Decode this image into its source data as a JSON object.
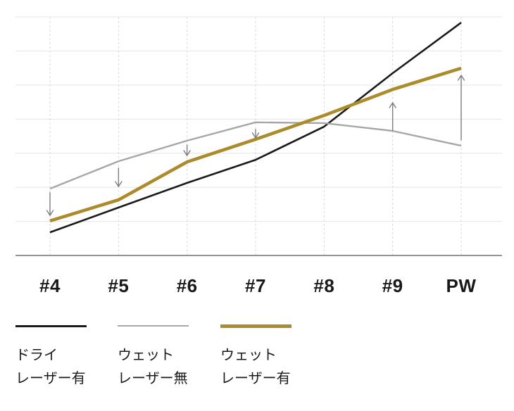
{
  "chart_data": {
    "type": "line",
    "title": "",
    "xlabel": "",
    "ylabel": "",
    "y_axis_tick_labels_visible": false,
    "ylim": [
      0,
      100
    ],
    "grid": {
      "horizontal": "solid",
      "vertical": "dashed"
    },
    "legend_position": "bottom-left",
    "categories": [
      "#4",
      "#5",
      "#6",
      "#7",
      "#8",
      "#9",
      "PW"
    ],
    "series": [
      {
        "name": "ドライ レーザー有",
        "legend_line1": "ドライ",
        "legend_line2": "レーザー有",
        "color": "#1a1a1a",
        "stroke_width": 2.6,
        "values": [
          9.7,
          20.1,
          30.4,
          40.1,
          54.0,
          76.4,
          97.6
        ]
      },
      {
        "name": "ウェット レーザー無",
        "legend_line1": "ウェット",
        "legend_line2": "レーザー無",
        "color": "#a7a7a7",
        "stroke_width": 2.4,
        "values": [
          28.0,
          39.5,
          48.1,
          55.8,
          55.5,
          52.2,
          46.0
        ]
      },
      {
        "name": "ウェット レーザー有",
        "legend_line1": "ウェット",
        "legend_line2": "レーザー有",
        "color": "#ab8b2a",
        "stroke_width": 4.6,
        "values": [
          14.5,
          23.3,
          39.2,
          48.7,
          58.7,
          69.6,
          78.5
        ]
      }
    ],
    "arrows": [
      {
        "category": "#4",
        "from_series": "ウェット レーザー無",
        "to_series": "ウェット レーザー有",
        "from": 26.3,
        "to": 16.8,
        "direction": "down"
      },
      {
        "category": "#5",
        "from_series": "ウェット レーザー無",
        "to_series": "ウェット レーザー有",
        "from": 36.6,
        "to": 28.9,
        "direction": "down"
      },
      {
        "category": "#6",
        "from_series": "ウェット レーザー無",
        "to_series": "ウェット レーザー有",
        "from": 46.3,
        "to": 41.9,
        "direction": "down"
      },
      {
        "category": "#7",
        "from_series": "ウェット レーザー無",
        "to_series": "ウェット レーザー有",
        "from": 52.8,
        "to": 49.3,
        "direction": "down"
      },
      {
        "category": "#9",
        "from_series": "ウェット レーザー無",
        "to_series": "ウェット レーザー有",
        "from": 52.5,
        "to": 64.0,
        "direction": "up"
      },
      {
        "category": "PW",
        "from_series": "ウェット レーザー無",
        "to_series": "ウェット レーザー有",
        "from": 48.4,
        "to": 75.5,
        "direction": "up"
      }
    ]
  },
  "colors": {
    "background": "#ffffff",
    "h_gridline": "#e4e4e4",
    "v_gridline": "#d9d9d9",
    "axis_line": "#949494",
    "arrow": "#7d7d7d",
    "text": "#191919"
  }
}
